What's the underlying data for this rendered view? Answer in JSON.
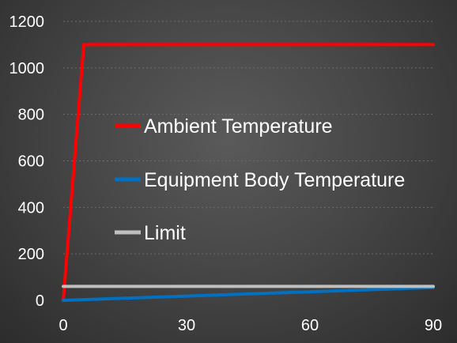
{
  "chart_data": {
    "type": "line",
    "title": "",
    "xlabel": "",
    "ylabel": "",
    "xlim": [
      0,
      90
    ],
    "ylim": [
      0,
      1200
    ],
    "x_ticks": [
      0,
      30,
      60,
      90
    ],
    "y_ticks": [
      0,
      200,
      400,
      600,
      800,
      1000,
      1200
    ],
    "grid": true,
    "legend_position": "center",
    "series": [
      {
        "name": "Ambient Temperature",
        "color": "#ff0000",
        "points": [
          [
            0,
            0
          ],
          [
            5,
            1100
          ],
          [
            90,
            1100
          ]
        ]
      },
      {
        "name": "Equipment Body Temperature",
        "color": "#0070c0",
        "points": [
          [
            0,
            0
          ],
          [
            90,
            55
          ]
        ]
      },
      {
        "name": "Limit",
        "color": "#bfbfbf",
        "points": [
          [
            0,
            60
          ],
          [
            90,
            60
          ]
        ]
      }
    ]
  }
}
